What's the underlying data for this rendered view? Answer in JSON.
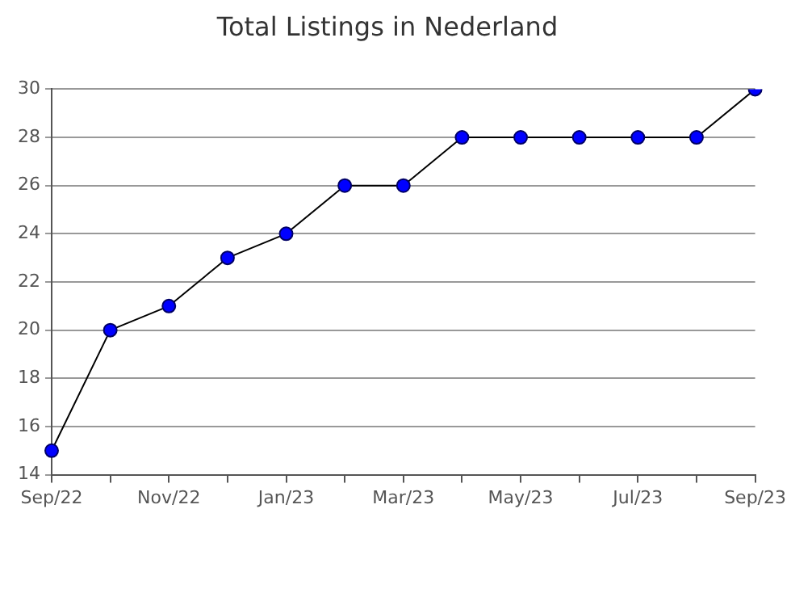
{
  "chart_data": {
    "type": "line",
    "title": "Total Listings in Nederland",
    "categories": [
      "Sep/22",
      null,
      "Nov/22",
      null,
      "Jan/23",
      null,
      "Mar/23",
      null,
      "May/23",
      null,
      "Jul/23",
      null,
      "Sep/23"
    ],
    "series": [
      {
        "color": "#0000ff",
        "values": [
          15,
          20,
          21,
          23,
          24,
          26,
          26,
          28,
          28,
          28,
          28,
          28,
          30
        ]
      }
    ],
    "ylim": [
      14,
      30
    ],
    "yticks": [
      14,
      16,
      18,
      20,
      22,
      24,
      26,
      28,
      30
    ],
    "grid": "y",
    "legend": false,
    "marker": "circle",
    "line_style": "solid"
  }
}
